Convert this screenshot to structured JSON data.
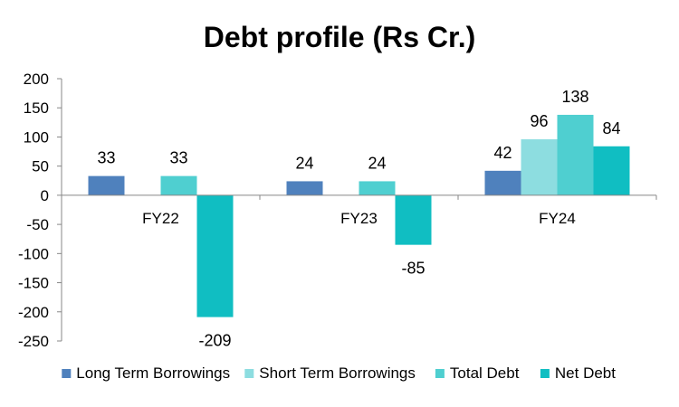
{
  "chart_data": {
    "type": "bar",
    "title": "Debt profile (Rs Cr.)",
    "xlabel": "",
    "ylabel": "",
    "categories": [
      "FY22",
      "FY23",
      "FY24"
    ],
    "ylim": [
      -250,
      200
    ],
    "yticks": [
      200,
      150,
      100,
      50,
      0,
      -50,
      -100,
      -150,
      -200,
      -250
    ],
    "grid": false,
    "legend_position": "bottom",
    "series": [
      {
        "name": "Long Term Borrowings",
        "color": "#4f81bd",
        "values": [
          33,
          24,
          42
        ]
      },
      {
        "name": "Short Term Borrowings",
        "color": "#8ddde0",
        "values": [
          null,
          null,
          96
        ]
      },
      {
        "name": "Total Debt",
        "color": "#4fcfd0",
        "values": [
          33,
          24,
          138
        ]
      },
      {
        "name": "Net Debt",
        "color": "#10bec2",
        "values": [
          -209,
          -85,
          84
        ]
      }
    ]
  }
}
